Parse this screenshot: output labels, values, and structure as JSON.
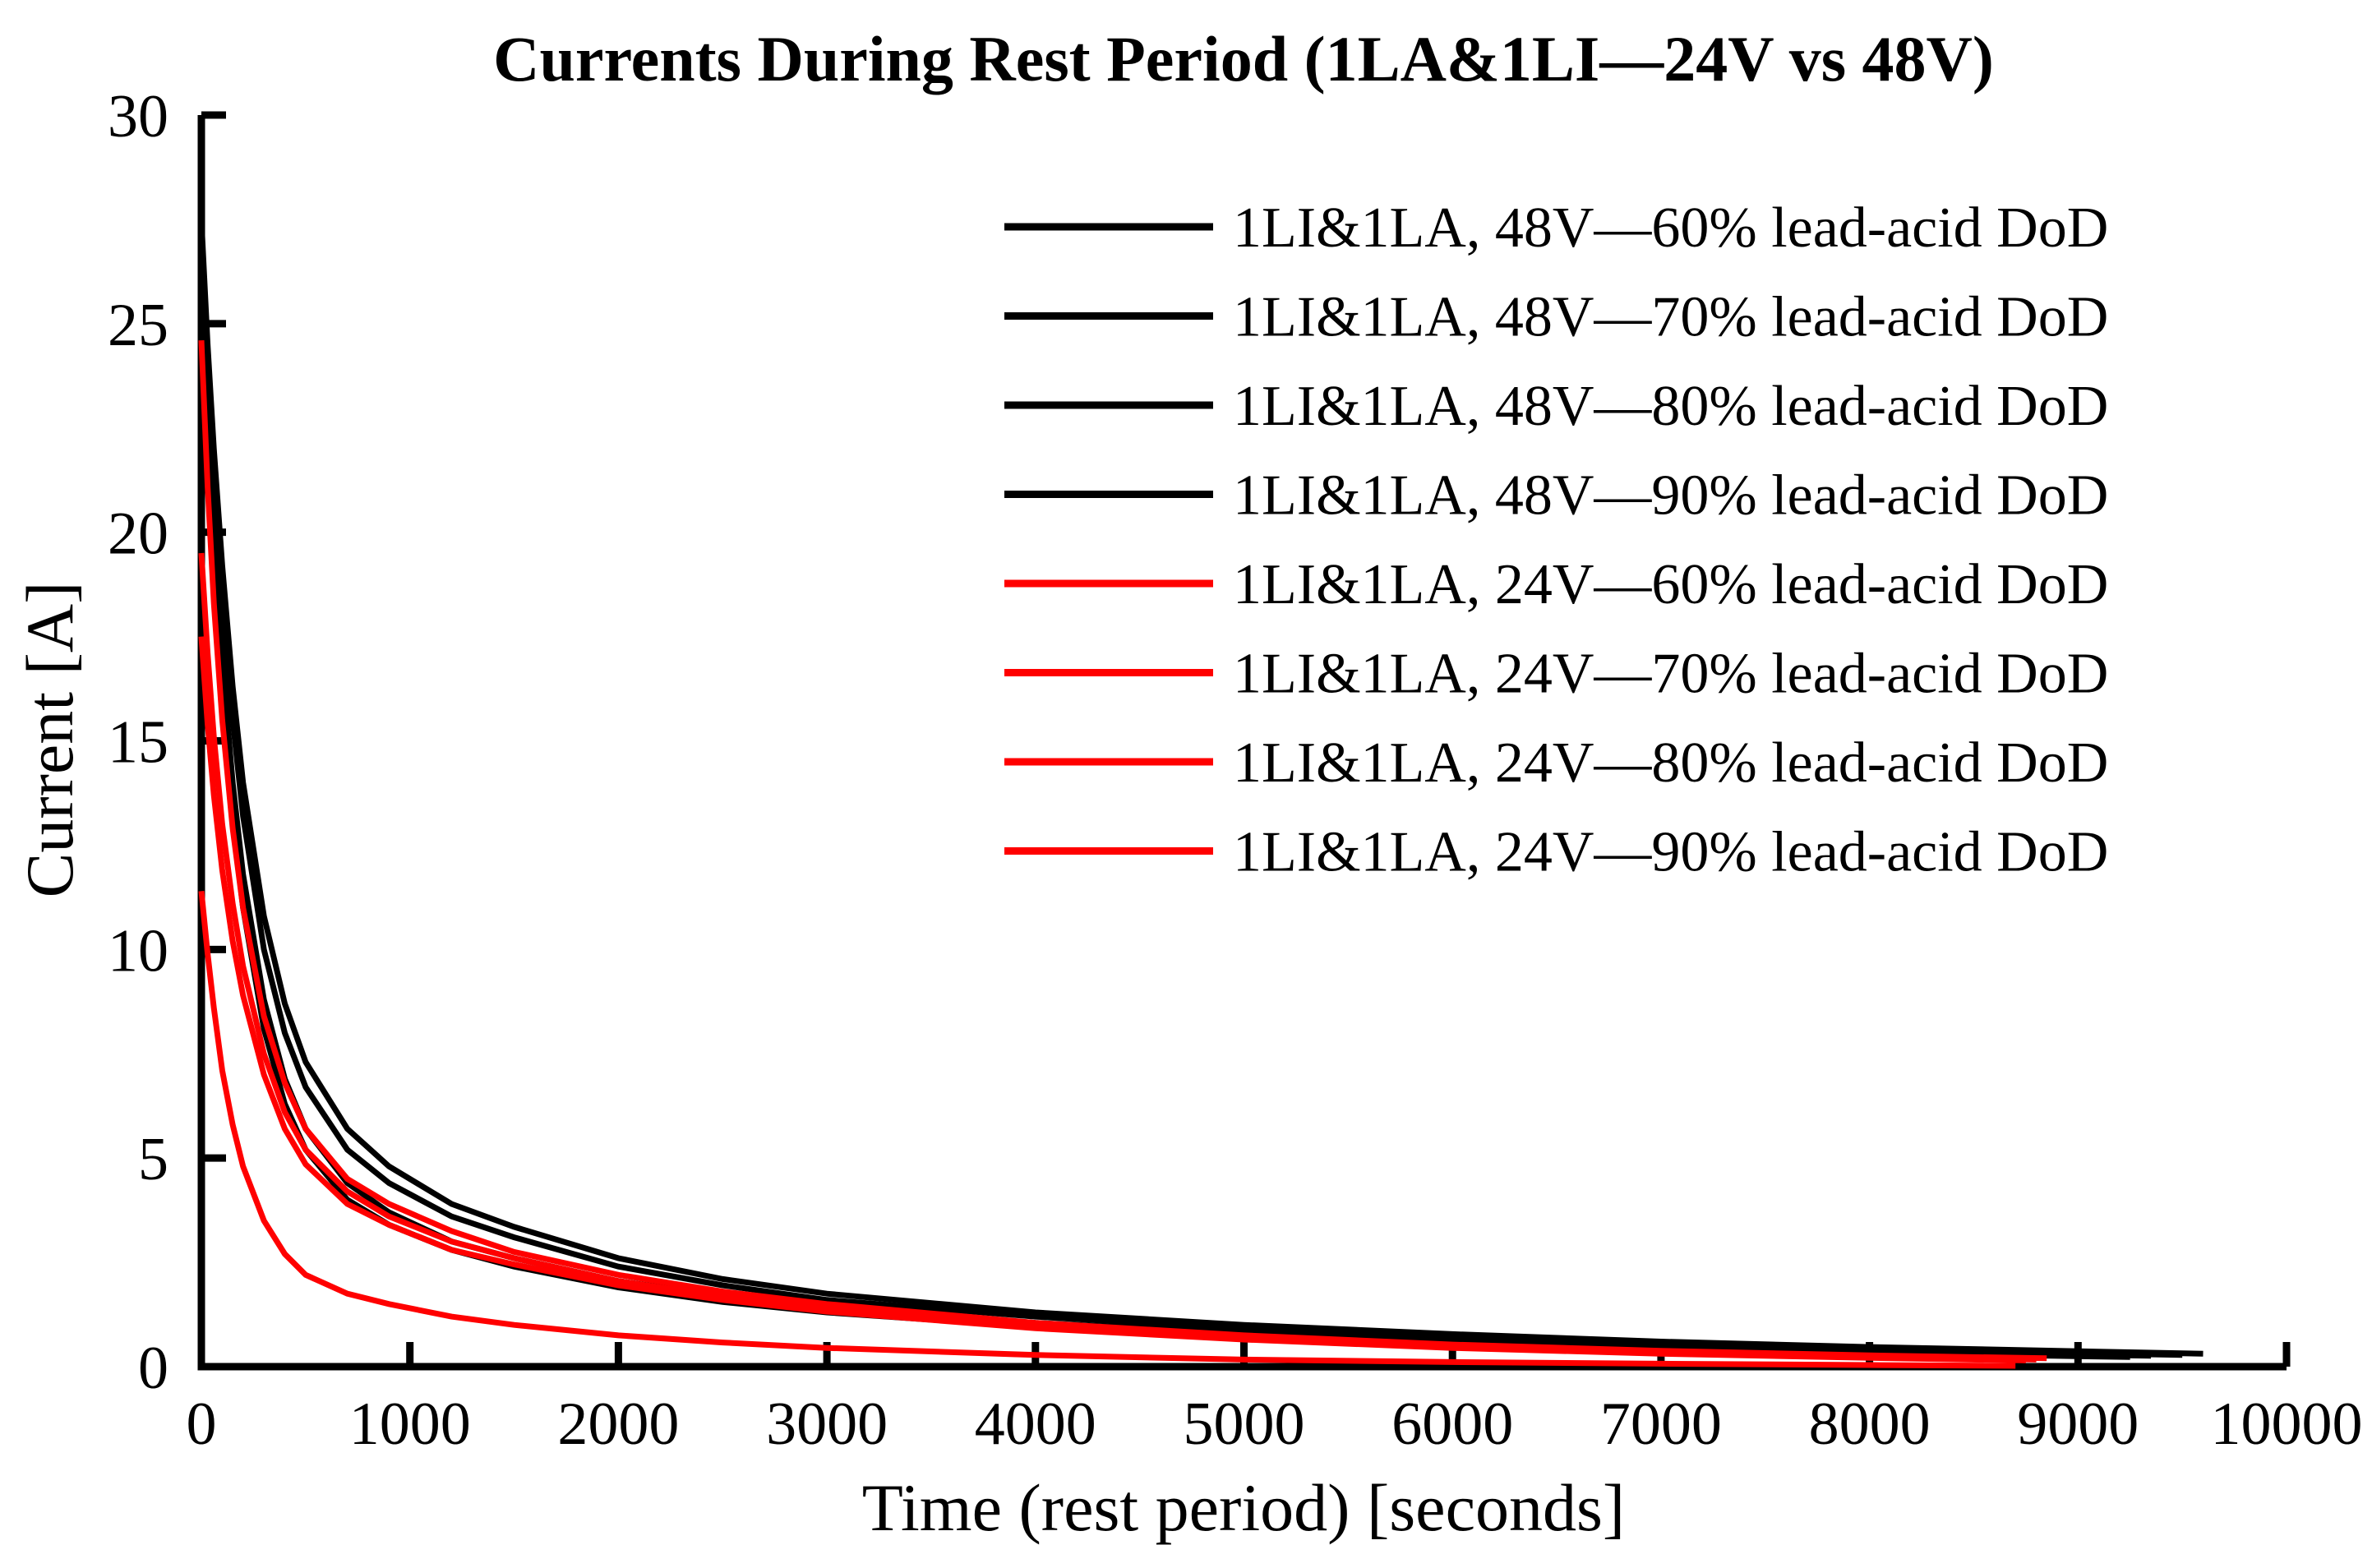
{
  "figure": {
    "background": "#ffffff",
    "axis_color": "#000000",
    "series_black": "#000000",
    "series_red": "#ff0000"
  },
  "chart_data": {
    "type": "line",
    "title": "Currents During Rest Period (1LA&1LI—24V vs 48V)",
    "xlabel": "Time (rest period) [seconds]",
    "ylabel": "Current [A]",
    "xlim": [
      0,
      10000
    ],
    "ylim": [
      0,
      30
    ],
    "x_ticks": [
      0,
      1000,
      2000,
      3000,
      4000,
      5000,
      6000,
      7000,
      8000,
      9000,
      10000
    ],
    "y_ticks": [
      0,
      5,
      10,
      15,
      20,
      25,
      30
    ],
    "grid": false,
    "legend_position": "upper right, no border box",
    "series": [
      {
        "id": "48v-60",
        "name": "1LI&1LA, 48V—60% lead-acid DoD",
        "color": "#000000",
        "points": [
          [
            0,
            27.5
          ],
          [
            30,
            24.5
          ],
          [
            60,
            22.0
          ],
          [
            100,
            19.2
          ],
          [
            150,
            16.3
          ],
          [
            200,
            14.0
          ],
          [
            300,
            10.8
          ],
          [
            400,
            8.7
          ],
          [
            500,
            7.3
          ],
          [
            700,
            5.7
          ],
          [
            900,
            4.8
          ],
          [
            1200,
            3.9
          ],
          [
            1500,
            3.35
          ],
          [
            2000,
            2.6
          ],
          [
            2500,
            2.1
          ],
          [
            3000,
            1.75
          ],
          [
            4000,
            1.3
          ],
          [
            5000,
            1.0
          ],
          [
            6000,
            0.78
          ],
          [
            7000,
            0.6
          ],
          [
            8000,
            0.47
          ],
          [
            9600,
            0.31
          ]
        ]
      },
      {
        "id": "48v-70",
        "name": "1LI&1LA, 48V—70% lead-acid DoD",
        "color": "#000000",
        "points": [
          [
            0,
            27.0
          ],
          [
            30,
            23.9
          ],
          [
            60,
            21.3
          ],
          [
            100,
            18.4
          ],
          [
            150,
            15.5
          ],
          [
            200,
            13.2
          ],
          [
            300,
            10.0
          ],
          [
            400,
            8.0
          ],
          [
            500,
            6.7
          ],
          [
            700,
            5.2
          ],
          [
            900,
            4.4
          ],
          [
            1200,
            3.6
          ],
          [
            1500,
            3.1
          ],
          [
            2000,
            2.4
          ],
          [
            2500,
            1.95
          ],
          [
            3000,
            1.6
          ],
          [
            4000,
            1.2
          ],
          [
            5000,
            0.9
          ],
          [
            6000,
            0.7
          ],
          [
            7000,
            0.54
          ],
          [
            8000,
            0.42
          ],
          [
            9500,
            0.28
          ]
        ]
      },
      {
        "id": "48v-80",
        "name": "1LI&1LA, 48V—80% lead-acid DoD",
        "color": "#000000",
        "points": [
          [
            0,
            26.0
          ],
          [
            30,
            22.7
          ],
          [
            60,
            19.9
          ],
          [
            100,
            16.9
          ],
          [
            150,
            14.0
          ],
          [
            200,
            11.8
          ],
          [
            300,
            8.8
          ],
          [
            400,
            6.9
          ],
          [
            500,
            5.7
          ],
          [
            700,
            4.4
          ],
          [
            900,
            3.7
          ],
          [
            1200,
            3.0
          ],
          [
            1500,
            2.6
          ],
          [
            2000,
            2.05
          ],
          [
            2500,
            1.7
          ],
          [
            3000,
            1.42
          ],
          [
            4000,
            1.05
          ],
          [
            5000,
            0.8
          ],
          [
            6000,
            0.62
          ],
          [
            7000,
            0.48
          ],
          [
            8000,
            0.37
          ],
          [
            9350,
            0.26
          ]
        ]
      },
      {
        "id": "48v-90",
        "name": "1LI&1LA, 48V—90% lead-acid DoD",
        "color": "#000000",
        "points": [
          [
            0,
            25.0
          ],
          [
            30,
            21.7
          ],
          [
            60,
            18.9
          ],
          [
            100,
            15.9
          ],
          [
            150,
            13.1
          ],
          [
            200,
            11.0
          ],
          [
            300,
            8.1
          ],
          [
            400,
            6.3
          ],
          [
            500,
            5.2
          ],
          [
            700,
            4.0
          ],
          [
            900,
            3.4
          ],
          [
            1200,
            2.8
          ],
          [
            1500,
            2.4
          ],
          [
            2000,
            1.9
          ],
          [
            2500,
            1.55
          ],
          [
            3000,
            1.3
          ],
          [
            4000,
            0.95
          ],
          [
            5000,
            0.72
          ],
          [
            6000,
            0.56
          ],
          [
            7000,
            0.43
          ],
          [
            8000,
            0.33
          ],
          [
            9250,
            0.23
          ]
        ]
      },
      {
        "id": "24v-60",
        "name": "1LI&1LA, 24V—60% lead-acid DoD",
        "color": "#ff0000",
        "points": [
          [
            0,
            24.6
          ],
          [
            30,
            21.1
          ],
          [
            60,
            18.3
          ],
          [
            100,
            15.5
          ],
          [
            150,
            12.9
          ],
          [
            200,
            11.0
          ],
          [
            300,
            8.4
          ],
          [
            400,
            6.8
          ],
          [
            500,
            5.7
          ],
          [
            700,
            4.5
          ],
          [
            900,
            3.9
          ],
          [
            1200,
            3.25
          ],
          [
            1500,
            2.75
          ],
          [
            2000,
            2.2
          ],
          [
            2500,
            1.8
          ],
          [
            3000,
            1.5
          ],
          [
            4000,
            1.05
          ],
          [
            5000,
            0.75
          ],
          [
            6000,
            0.53
          ],
          [
            7000,
            0.38
          ],
          [
            8000,
            0.27
          ],
          [
            8850,
            0.2
          ]
        ]
      },
      {
        "id": "24v-70",
        "name": "1LI&1LA, 24V—70% lead-acid DoD",
        "color": "#ff0000",
        "points": [
          [
            0,
            19.5
          ],
          [
            30,
            17.1
          ],
          [
            60,
            15.1
          ],
          [
            100,
            13.0
          ],
          [
            150,
            11.1
          ],
          [
            200,
            9.6
          ],
          [
            300,
            7.5
          ],
          [
            400,
            6.1
          ],
          [
            500,
            5.2
          ],
          [
            700,
            4.2
          ],
          [
            900,
            3.6
          ],
          [
            1200,
            3.0
          ],
          [
            1500,
            2.6
          ],
          [
            2000,
            2.05
          ],
          [
            2500,
            1.68
          ],
          [
            3000,
            1.38
          ],
          [
            4000,
            0.98
          ],
          [
            5000,
            0.7
          ],
          [
            6000,
            0.49
          ],
          [
            7000,
            0.34
          ],
          [
            8000,
            0.24
          ],
          [
            8800,
            0.17
          ]
        ]
      },
      {
        "id": "24v-80",
        "name": "1LI&1LA, 24V—80% lead-acid DoD",
        "color": "#ff0000",
        "points": [
          [
            0,
            17.5
          ],
          [
            30,
            15.4
          ],
          [
            60,
            13.7
          ],
          [
            100,
            11.9
          ],
          [
            150,
            10.2
          ],
          [
            200,
            8.9
          ],
          [
            300,
            7.0
          ],
          [
            400,
            5.7
          ],
          [
            500,
            4.85
          ],
          [
            700,
            3.9
          ],
          [
            900,
            3.4
          ],
          [
            1200,
            2.8
          ],
          [
            1500,
            2.45
          ],
          [
            2000,
            1.95
          ],
          [
            2500,
            1.6
          ],
          [
            3000,
            1.32
          ],
          [
            4000,
            0.92
          ],
          [
            5000,
            0.65
          ],
          [
            6000,
            0.45
          ],
          [
            7000,
            0.31
          ],
          [
            8000,
            0.21
          ],
          [
            8750,
            0.15
          ]
        ]
      },
      {
        "id": "24v-90",
        "name": "1LI&1LA, 24V—90% lead-acid DoD",
        "color": "#ff0000",
        "points": [
          [
            0,
            11.4
          ],
          [
            30,
            9.9
          ],
          [
            60,
            8.6
          ],
          [
            100,
            7.1
          ],
          [
            150,
            5.8
          ],
          [
            200,
            4.8
          ],
          [
            300,
            3.5
          ],
          [
            400,
            2.7
          ],
          [
            500,
            2.2
          ],
          [
            700,
            1.75
          ],
          [
            900,
            1.5
          ],
          [
            1200,
            1.2
          ],
          [
            1500,
            1.0
          ],
          [
            2000,
            0.75
          ],
          [
            2500,
            0.58
          ],
          [
            3000,
            0.45
          ],
          [
            4000,
            0.28
          ],
          [
            5000,
            0.17
          ],
          [
            6000,
            0.11
          ],
          [
            7000,
            0.07
          ],
          [
            8000,
            0.04
          ],
          [
            8700,
            0.02
          ]
        ]
      }
    ]
  }
}
